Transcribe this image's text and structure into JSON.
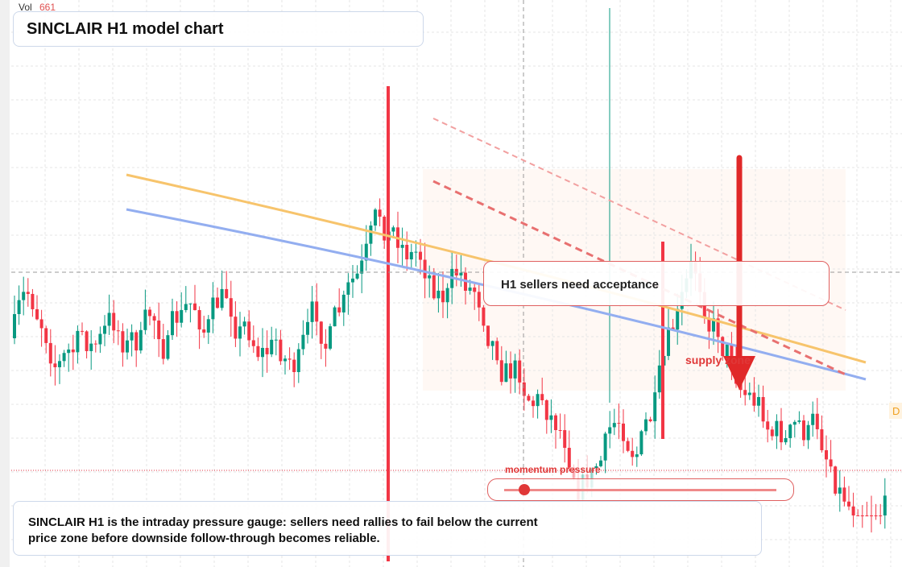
{
  "header": {
    "vol_label": "Vol",
    "vol_value": "661",
    "title": "SINCLAIR H1 model chart"
  },
  "annotations": {
    "callout": "H1 sellers need acceptance",
    "zone": "supply zone",
    "gauge": "momentum pressure",
    "edge_tag": "D"
  },
  "description": "SINCLAIR H1 is the intraday pressure gauge: sellers need rallies to fail below the current price zone before downside follow-through becomes reliable."
}
